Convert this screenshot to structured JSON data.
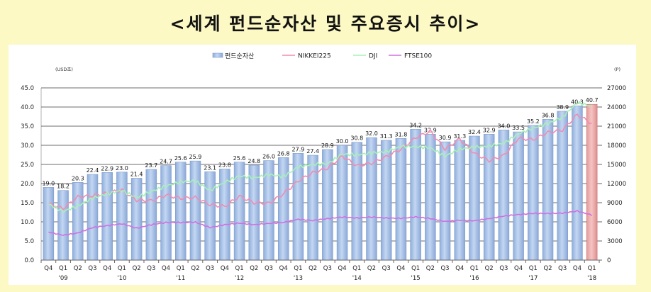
{
  "title": "<세계 펀드순자산 및 주요증시 추이>",
  "chart_data": {
    "type": "bar+line",
    "title": "<세계 펀드순자산 및 주요증시 추이>",
    "left_axis": {
      "unit": "(USD조)",
      "ylim": [
        0,
        45
      ],
      "ticks": [
        "0.0",
        "5.0",
        "10.0",
        "15.0",
        "20.0",
        "25.0",
        "30.0",
        "35.0",
        "40.0",
        "45.0"
      ]
    },
    "right_axis": {
      "unit": "(P)",
      "ylim": [
        0,
        27000
      ],
      "ticks": [
        "0",
        "3000",
        "6000",
        "9000",
        "12000",
        "15000",
        "18000",
        "21000",
        "24000",
        "27000"
      ]
    },
    "legend": [
      "펀드순자산",
      "NIKKEI225",
      "DJI",
      "FTSE100"
    ],
    "legend_position": "top",
    "grid": true,
    "categories": [
      "Q4",
      "Q1",
      "Q2",
      "Q3",
      "Q4",
      "Q1",
      "Q2",
      "Q3",
      "Q4",
      "Q1",
      "Q2",
      "Q3",
      "Q4",
      "Q1",
      "Q2",
      "Q3",
      "Q4",
      "Q1",
      "Q2",
      "Q3",
      "Q4",
      "Q1",
      "Q2",
      "Q3",
      "Q4",
      "Q1",
      "Q2",
      "Q3",
      "Q4",
      "Q1",
      "Q2",
      "Q3",
      "Q4",
      "Q1",
      "Q2",
      "Q3",
      "Q4",
      "Q1"
    ],
    "year_labels": [
      {
        "index": 1,
        "label": "'09"
      },
      {
        "index": 5,
        "label": "'10"
      },
      {
        "index": 9,
        "label": "'11"
      },
      {
        "index": 13,
        "label": "'12"
      },
      {
        "index": 17,
        "label": "'13"
      },
      {
        "index": 21,
        "label": "'14"
      },
      {
        "index": 25,
        "label": "'15"
      },
      {
        "index": 29,
        "label": "'16"
      },
      {
        "index": 33,
        "label": "'17"
      },
      {
        "index": 37,
        "label": "'18"
      }
    ],
    "series": [
      {
        "name": "펀드순자산",
        "type": "bar",
        "axis": "left",
        "color": "#a8c4ea",
        "highlight_last_color": "#eeaaaa",
        "values": [
          19.0,
          18.2,
          20.3,
          22.4,
          22.9,
          23.0,
          21.4,
          23.7,
          24.7,
          25.6,
          25.9,
          23.1,
          23.8,
          25.6,
          24.8,
          26.0,
          26.8,
          27.9,
          27.4,
          28.9,
          30.0,
          30.8,
          32.0,
          31.3,
          31.8,
          34.2,
          32.9,
          30.9,
          31.3,
          32.4,
          32.9,
          34.0,
          33.5,
          35.2,
          36.8,
          38.9,
          40.3,
          40.7
        ]
      },
      {
        "name": "NIKKEI225",
        "type": "line",
        "axis": "right",
        "color": "#f08cb4",
        "values": [
          8800,
          8100,
          9900,
          10100,
          10500,
          11000,
          9400,
          9300,
          10200,
          9700,
          9800,
          8700,
          8400,
          10000,
          9000,
          8900,
          10400,
          12400,
          13700,
          14400,
          16300,
          14800,
          15200,
          16200,
          17400,
          19200,
          20200,
          17400,
          19000,
          16700,
          15600,
          16400,
          19100,
          18900,
          20000,
          20400,
          22800,
          21400
        ]
      },
      {
        "name": "DJI",
        "type": "line",
        "axis": "right",
        "color": "#a8f0b8",
        "values": [
          8800,
          7600,
          8500,
          9700,
          10400,
          10900,
          9800,
          10800,
          11600,
          12300,
          12400,
          10900,
          12200,
          13200,
          12900,
          13400,
          13100,
          14600,
          15000,
          15100,
          16600,
          16500,
          16800,
          17000,
          17800,
          17800,
          17600,
          16300,
          17400,
          17700,
          17900,
          18300,
          19800,
          20700,
          21400,
          22400,
          24700,
          24100
        ]
      },
      {
        "name": "FTSE100",
        "type": "line",
        "axis": "right",
        "color": "#d070e0",
        "values": [
          4400,
          3900,
          4250,
          5100,
          5400,
          5700,
          5000,
          5550,
          5900,
          5900,
          5950,
          5100,
          5550,
          5800,
          5550,
          5750,
          5900,
          6400,
          6200,
          6500,
          6750,
          6600,
          6750,
          6600,
          6550,
          6770,
          6520,
          6060,
          6240,
          6170,
          6500,
          6900,
          7140,
          7320,
          7310,
          7370,
          7690,
          7060
        ]
      }
    ]
  }
}
